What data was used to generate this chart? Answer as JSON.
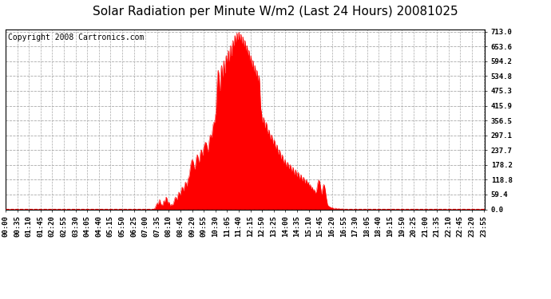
{
  "title": "Solar Radiation per Minute W/m2 (Last 24 Hours) 20081025",
  "copyright": "Copyright 2008 Cartronics.com",
  "yticks": [
    0.0,
    59.4,
    118.8,
    178.2,
    237.7,
    297.1,
    356.5,
    415.9,
    475.3,
    534.8,
    594.2,
    653.6,
    713.0
  ],
  "ymax": 713.0,
  "ymin": 0.0,
  "bar_color": "#FF0000",
  "bg_color": "#FFFFFF",
  "grid_color": "#AAAAAA",
  "dashed_line_color": "#FF0000",
  "title_fontsize": 11,
  "copyright_fontsize": 7,
  "tick_fontsize": 6.5,
  "num_minutes": 1440,
  "solar_max": 713.0
}
